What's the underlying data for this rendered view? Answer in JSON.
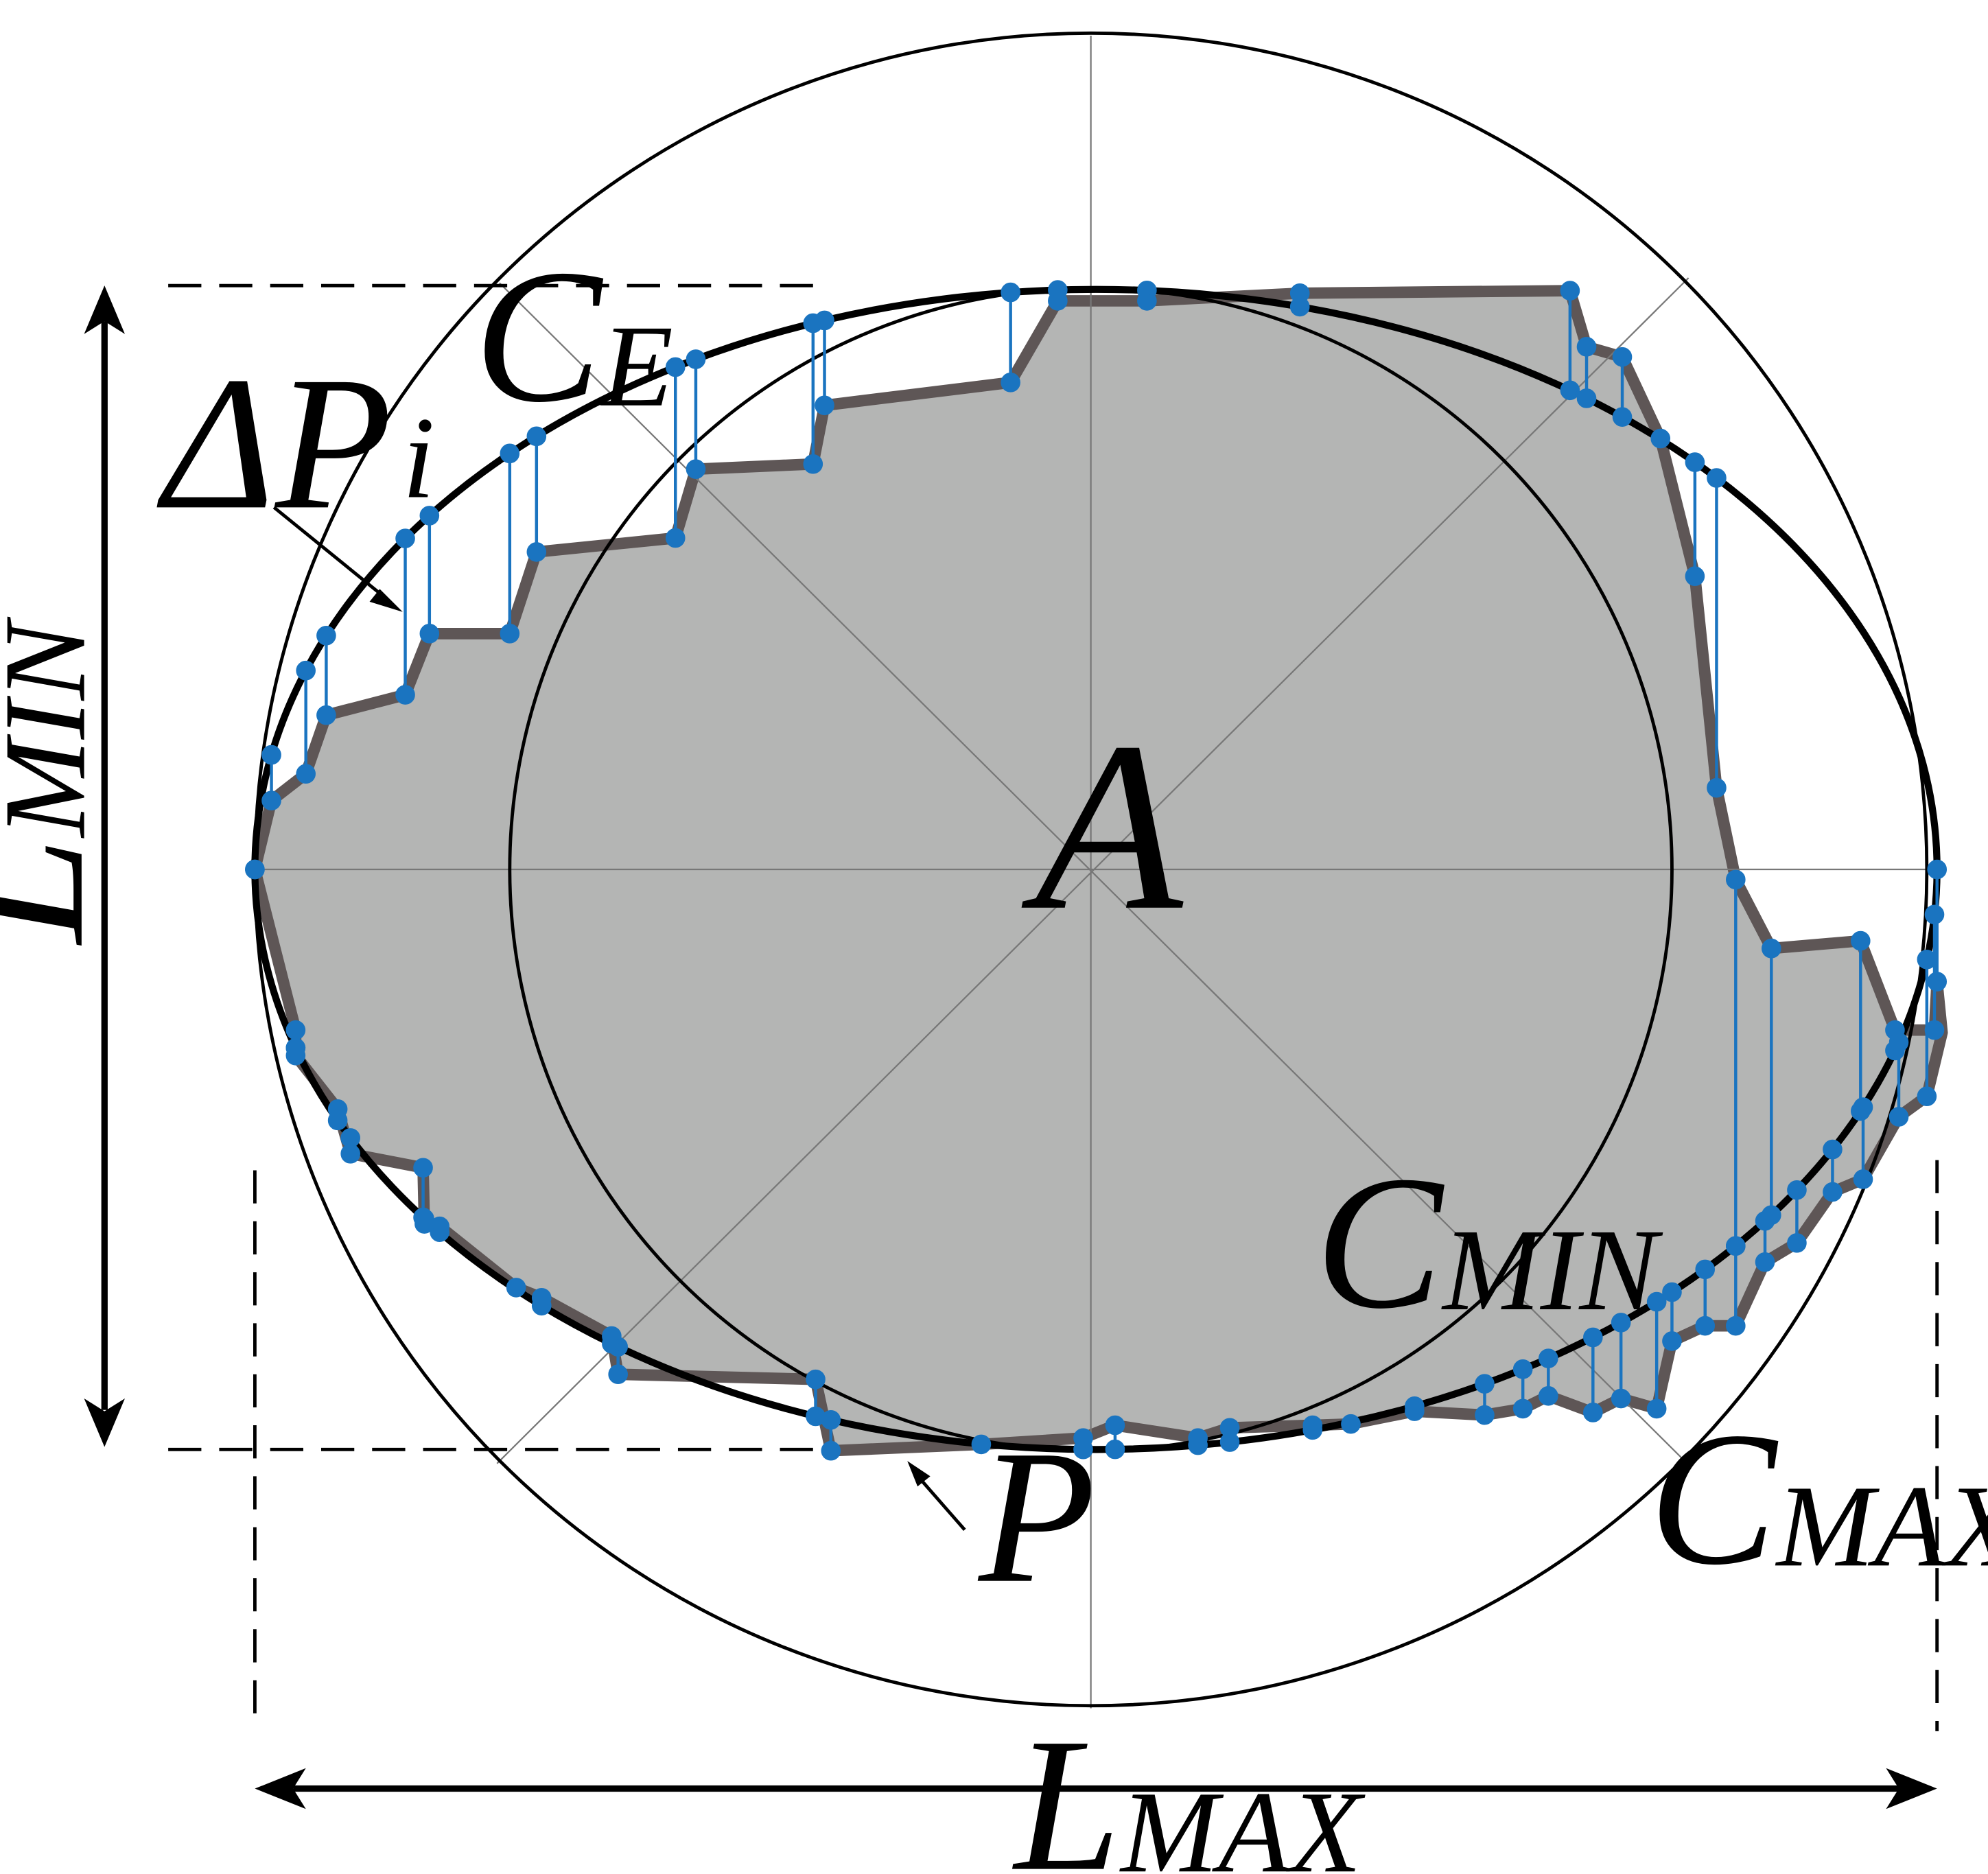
{
  "labels": {
    "center": "A",
    "ellipse_c": "C",
    "ellipse_sub": "E",
    "delta": "ΔP",
    "delta_sub": "i",
    "profile": "P",
    "cmin_c": "C",
    "cmin_sub": "MIN",
    "cmax_c": "C",
    "cmax_sub": "MAX",
    "lmin_l": "L",
    "lmin_sub": "MIN",
    "lmax_l": "L",
    "lmax_sub": "MAX"
  },
  "colors": {
    "shape_fill": "#b4b5b4",
    "shape_stroke": "#5e5656",
    "marker": "#1a74c0",
    "outline": "#000000",
    "guide": "#777777"
  }
}
